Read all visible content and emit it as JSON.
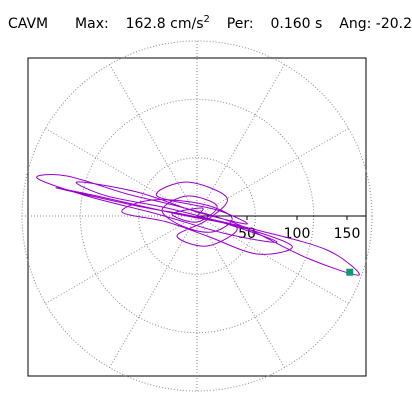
{
  "header": {
    "name": "CAVM",
    "max_label": "Max:",
    "max_value": "162.8",
    "max_unit": "cm/s",
    "max_unit_exp": "2",
    "per_label": "Per:",
    "per_value": "0.160",
    "per_unit": "s",
    "ang_label": "Ang:",
    "ang_value": "-20.2"
  },
  "chart_data": {
    "type": "scatter",
    "title": "",
    "coordinate_system": "polar",
    "r_ticks": [
      50,
      100,
      150
    ],
    "r_tick_labels": [
      "50",
      "100",
      "150"
    ],
    "r_max": 175,
    "ring_count": 3,
    "radial_lines_every_deg": 30,
    "grid": true,
    "trace_color": "#9900cc",
    "marker_color": "#119977",
    "peak_point": {
      "magnitude": 162.8,
      "angle_deg": -20.2
    },
    "series": [
      {
        "values": [
          [
            0,
            0
          ],
          [
            60,
            -14
          ],
          [
            130,
            -34
          ],
          [
            162,
            -59
          ],
          [
            110,
            -42
          ],
          [
            40,
            -8
          ],
          [
            -20,
            10
          ],
          [
            -70,
            22
          ],
          [
            -130,
            40
          ],
          [
            -160,
            38
          ],
          [
            -110,
            20
          ],
          [
            -40,
            2
          ],
          [
            30,
            -18
          ],
          [
            80,
            -26
          ],
          [
            30,
            -8
          ],
          [
            -30,
            8
          ],
          [
            -90,
            20
          ],
          [
            -120,
            34
          ],
          [
            -60,
            24
          ],
          [
            0,
            4
          ],
          [
            50,
            -8
          ],
          [
            20,
            6
          ],
          [
            -40,
            20
          ],
          [
            -10,
            34
          ],
          [
            30,
            18
          ],
          [
            10,
            -4
          ],
          [
            -20,
            -20
          ],
          [
            10,
            -30
          ],
          [
            40,
            -12
          ],
          [
            -5,
            0
          ],
          [
            -60,
            10
          ],
          [
            -140,
            28
          ],
          [
            -100,
            20
          ],
          [
            -20,
            2
          ],
          [
            40,
            -10
          ],
          [
            95,
            -30
          ],
          [
            60,
            -38
          ],
          [
            10,
            -20
          ],
          [
            -30,
            -6
          ],
          [
            -75,
            4
          ],
          [
            -45,
            16
          ],
          [
            5,
            12
          ],
          [
            35,
            -2
          ],
          [
            15,
            -16
          ],
          [
            -15,
            -10
          ],
          [
            -35,
            6
          ],
          [
            -10,
            20
          ],
          [
            20,
            10
          ],
          [
            0,
            -6
          ],
          [
            -25,
            2
          ],
          [
            5,
            8
          ],
          [
            0,
            0
          ]
        ]
      }
    ]
  }
}
